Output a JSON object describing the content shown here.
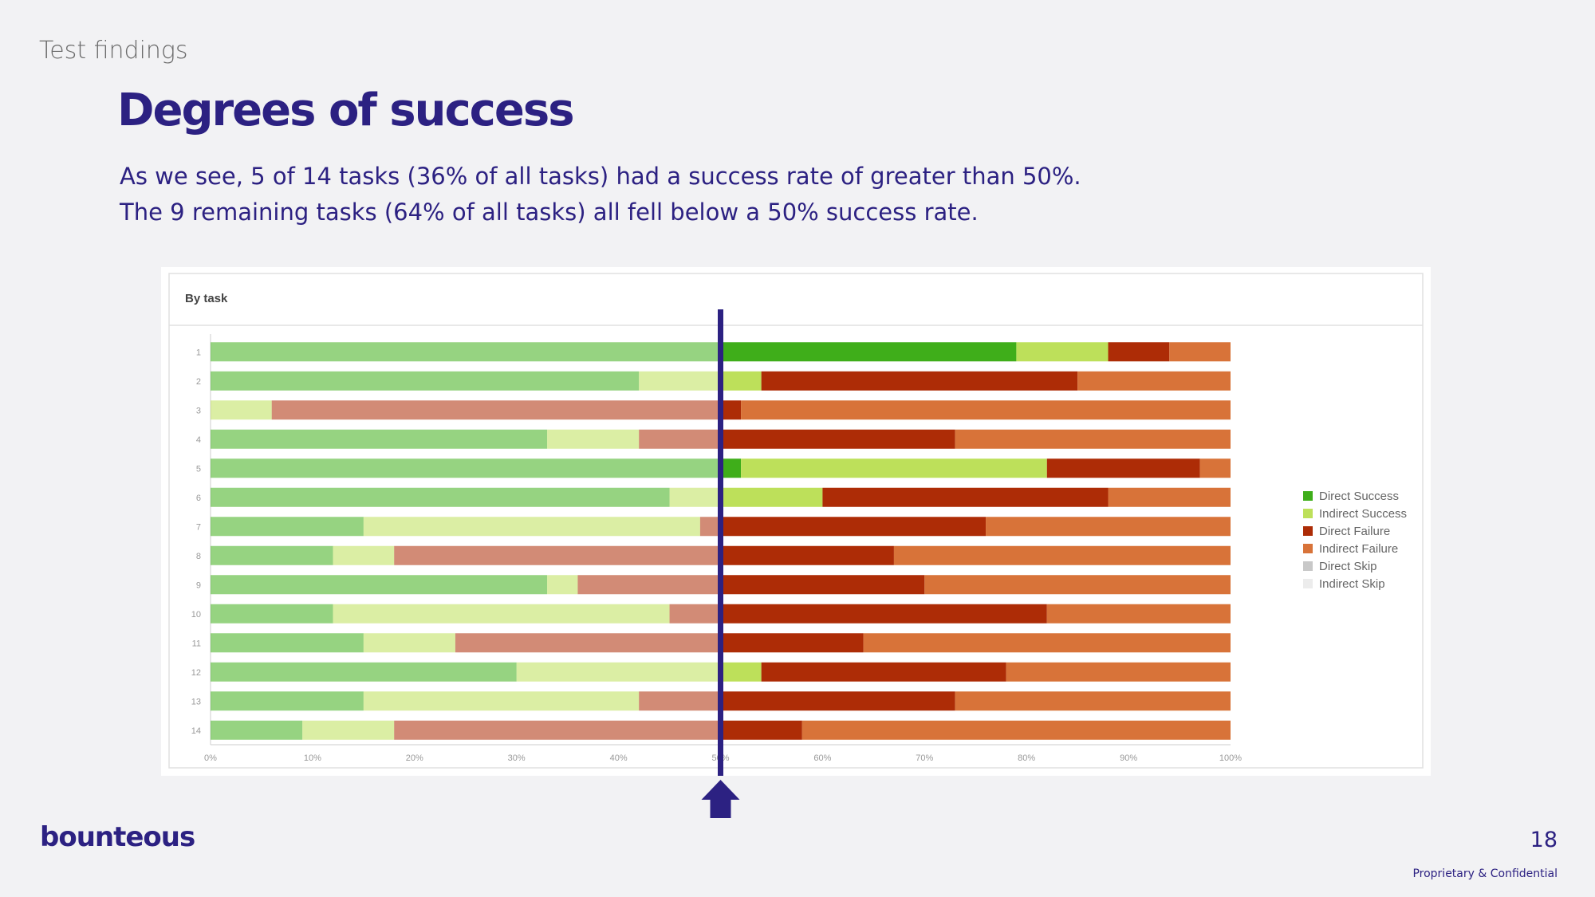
{
  "header": {
    "section": "Test findings",
    "title": "Degrees of success",
    "line1": "As we see, 5 of 14 tasks (36% of all tasks) had a success rate of greater than 50%.",
    "line2": "The 9 remaining tasks (64% of all tasks) all fell below a 50% success rate."
  },
  "footer": {
    "logo": "bounteous",
    "page_number": "18",
    "confidential": "Proprietary & Confidential"
  },
  "colors": {
    "brand": "#2c2182",
    "direct_success": "#3fae1a",
    "indirect_success": "#bde05a",
    "direct_failure": "#ad2c06",
    "indirect_failure": "#d87339",
    "direct_skip": "#c8c8c8",
    "indirect_skip": "#ececec"
  },
  "chart_data": {
    "type": "bar",
    "orientation": "horizontal",
    "stacked": true,
    "percent": true,
    "title": "By task",
    "categories": [
      "1",
      "2",
      "3",
      "4",
      "5",
      "6",
      "7",
      "8",
      "9",
      "10",
      "11",
      "12",
      "13",
      "14"
    ],
    "x_ticks": [
      "0%",
      "10%",
      "20%",
      "30%",
      "40%",
      "50%",
      "60%",
      "70%",
      "80%",
      "90%",
      "100%"
    ],
    "xlim": [
      0,
      100
    ],
    "reference_line": 50,
    "legend_position": "right",
    "series": [
      {
        "name": "Direct Success",
        "values": [
          79,
          42,
          0,
          33,
          52,
          45,
          15,
          12,
          33,
          12,
          15,
          30,
          15,
          9
        ]
      },
      {
        "name": "Indirect Success",
        "values": [
          9,
          12,
          6,
          9,
          30,
          15,
          33,
          6,
          3,
          33,
          9,
          24,
          27,
          9
        ]
      },
      {
        "name": "Direct Failure",
        "values": [
          6,
          31,
          46,
          31,
          15,
          28,
          28,
          49,
          34,
          37,
          40,
          24,
          31,
          40
        ]
      },
      {
        "name": "Indirect Failure",
        "values": [
          6,
          15,
          48,
          27,
          3,
          12,
          24,
          33,
          30,
          18,
          36,
          22,
          27,
          42
        ]
      },
      {
        "name": "Direct Skip",
        "values": [
          0,
          0,
          0,
          0,
          0,
          0,
          0,
          0,
          0,
          0,
          0,
          0,
          0,
          0
        ]
      },
      {
        "name": "Indirect Skip",
        "values": [
          0,
          0,
          0,
          0,
          0,
          0,
          0,
          0,
          0,
          0,
          0,
          0,
          0,
          0
        ]
      }
    ]
  }
}
